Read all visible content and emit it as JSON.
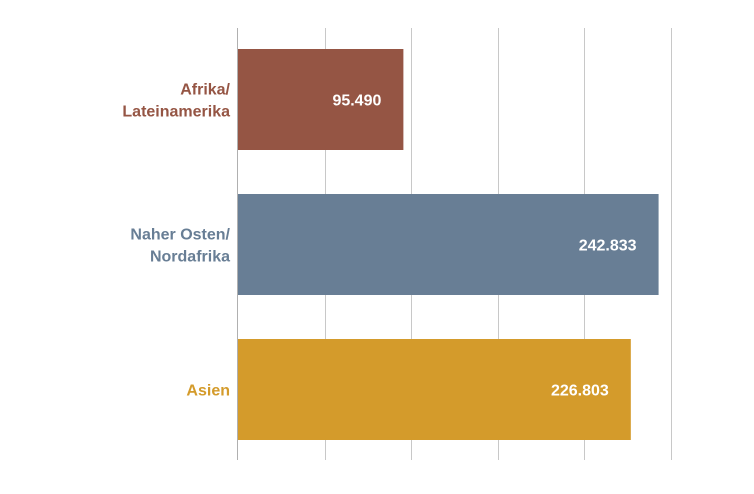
{
  "chart_data": {
    "type": "bar",
    "orientation": "horizontal",
    "categories": [
      "Afrika/\nLateinamerika",
      "Naher Osten/\nNordafrika",
      "Asien"
    ],
    "values": [
      95490,
      242833,
      226803
    ],
    "value_labels": [
      "95.490",
      "242.833",
      "226.803"
    ],
    "colors": [
      "#955544",
      "#687e95",
      "#d49b2b"
    ],
    "label_color": "#ffffff",
    "grid": true,
    "grid_color": "#c8c8c8",
    "axis_color": "#b0b0b0",
    "xlim": [
      0,
      250000
    ],
    "x_grid_step": 50000,
    "title": "",
    "xlabel": "",
    "ylabel": "",
    "legend": "none"
  }
}
